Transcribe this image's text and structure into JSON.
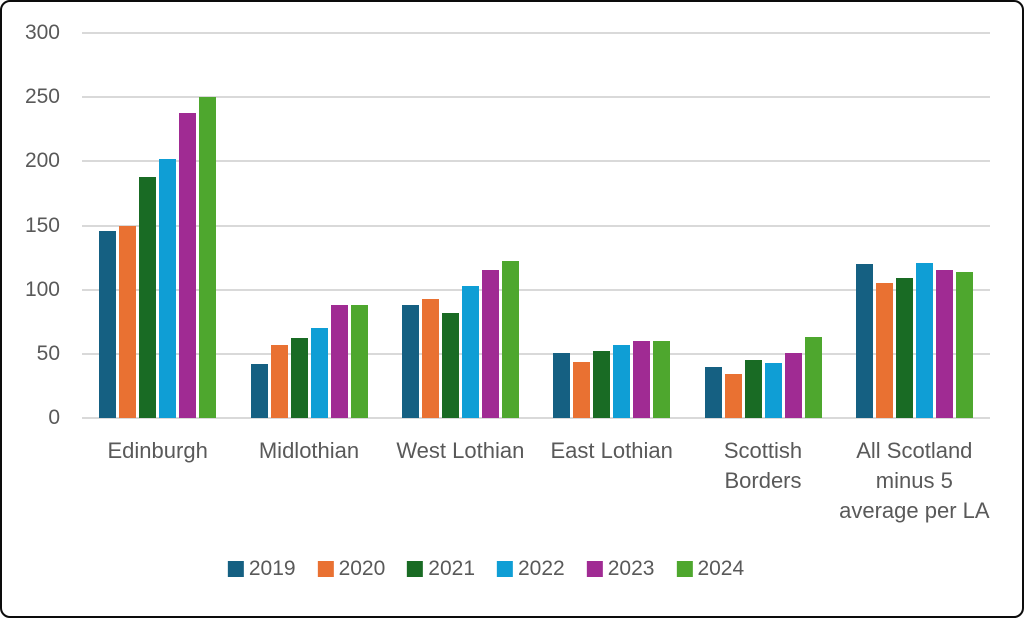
{
  "chart_data": {
    "type": "bar",
    "title": "",
    "xlabel": "",
    "ylabel": "",
    "categories": [
      "Edinburgh",
      "Midlothian",
      "West Lothian",
      "East Lothian",
      "Scottish\nBorders",
      "All Scotland\nminus 5\naverage per LA"
    ],
    "series": [
      {
        "name": "2019",
        "color": "#156082",
        "values": [
          146,
          42,
          88,
          51,
          40,
          120
        ]
      },
      {
        "name": "2020",
        "color": "#E97132",
        "values": [
          150,
          57,
          93,
          44,
          34,
          105
        ]
      },
      {
        "name": "2021",
        "color": "#196B24",
        "values": [
          188,
          62,
          82,
          52,
          45,
          109
        ]
      },
      {
        "name": "2022",
        "color": "#0F9ED5",
        "values": [
          202,
          70,
          103,
          57,
          43,
          121
        ]
      },
      {
        "name": "2023",
        "color": "#A02B93",
        "values": [
          238,
          88,
          115,
          60,
          51,
          115
        ]
      },
      {
        "name": "2024",
        "color": "#4EA72E",
        "values": [
          250,
          88,
          122,
          60,
          63,
          114
        ]
      }
    ],
    "ylim": [
      0,
      300
    ],
    "yticks": [
      "0",
      "50",
      "100",
      "150",
      "200",
      "250",
      "300"
    ],
    "grid": true,
    "legend_position": "bottom",
    "colors": {
      "text": "#595959",
      "gridline": "#D9D9D9",
      "frame_border": "#0C0C0C",
      "background": "#FFFFFF"
    }
  }
}
